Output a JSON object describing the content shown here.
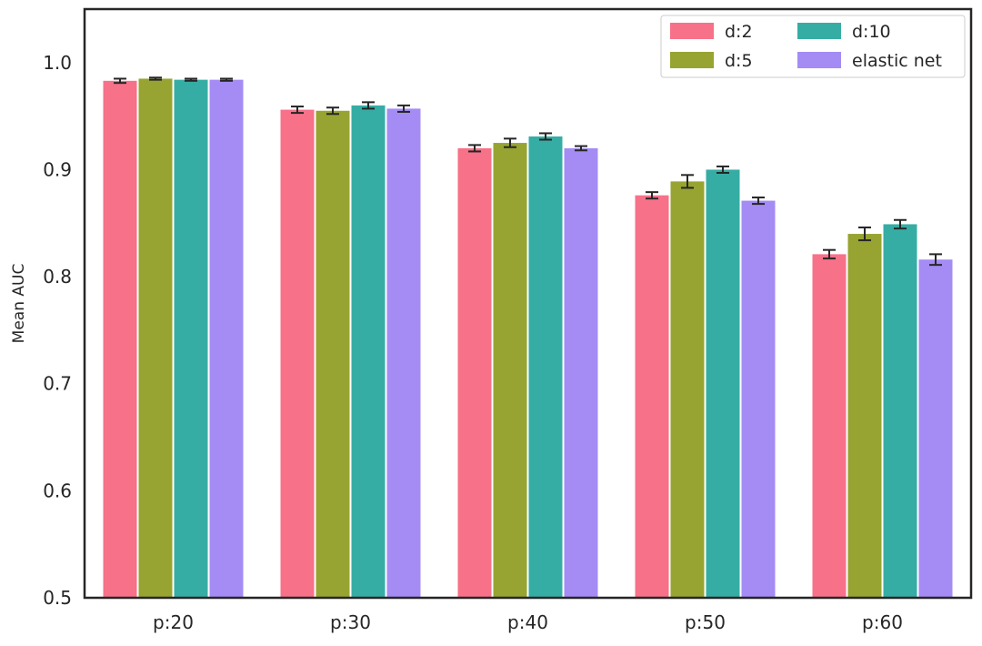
{
  "chart_data": {
    "type": "bar",
    "title": "",
    "xlabel": "",
    "ylabel": "Mean AUC",
    "ylim": [
      0.5,
      1.05
    ],
    "yticks": [
      "0.5",
      "0.6",
      "0.7",
      "0.8",
      "0.9",
      "1.0"
    ],
    "categories": [
      "p:20",
      "p:30",
      "p:40",
      "p:50",
      "p:60"
    ],
    "grid": false,
    "legend_position": "top-right",
    "series": [
      {
        "name": "d:2",
        "color": "#f77189",
        "values": [
          0.983,
          0.956,
          0.92,
          0.876,
          0.821
        ],
        "errors": [
          0.002,
          0.003,
          0.003,
          0.003,
          0.004
        ]
      },
      {
        "name": "d:5",
        "color": "#97a431",
        "values": [
          0.985,
          0.955,
          0.925,
          0.889,
          0.84
        ],
        "errors": [
          0.001,
          0.003,
          0.004,
          0.006,
          0.006
        ]
      },
      {
        "name": "d:10",
        "color": "#36ada4",
        "values": [
          0.984,
          0.96,
          0.931,
          0.9,
          0.849
        ],
        "errors": [
          0.001,
          0.003,
          0.003,
          0.003,
          0.004
        ]
      },
      {
        "name": "elastic net",
        "color": "#a48cf4",
        "values": [
          0.984,
          0.957,
          0.92,
          0.871,
          0.816
        ],
        "errors": [
          0.001,
          0.003,
          0.002,
          0.003,
          0.005
        ]
      }
    ]
  }
}
